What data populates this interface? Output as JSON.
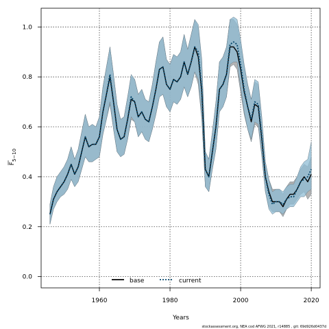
{
  "chart_data": {
    "type": "line",
    "xlabel": "Years",
    "ylabel": "F̅5–10",
    "ylabel_main": "F",
    "ylabel_sub": "5−10",
    "xlim": [
      1943.5,
      2022.5
    ],
    "ylim": [
      -0.045,
      1.075
    ],
    "grid": true,
    "legend_position": "bottom",
    "x_ticks": [
      1960,
      1980,
      2000,
      2020
    ],
    "y_ticks": [
      0.0,
      0.2,
      0.4,
      0.6,
      0.8,
      1.0
    ],
    "x_tick_labels": [
      "1960",
      "1980",
      "2000",
      "2020"
    ],
    "y_tick_labels": [
      "0.0",
      "0.2",
      "0.4",
      "0.6",
      "0.8",
      "1.0"
    ],
    "x": [
      1946,
      1947,
      1948,
      1949,
      1950,
      1951,
      1952,
      1953,
      1954,
      1955,
      1956,
      1957,
      1958,
      1959,
      1960,
      1961,
      1962,
      1963,
      1964,
      1965,
      1966,
      1967,
      1968,
      1969,
      1970,
      1971,
      1972,
      1973,
      1974,
      1975,
      1976,
      1977,
      1978,
      1979,
      1980,
      1981,
      1982,
      1983,
      1984,
      1985,
      1986,
      1987,
      1988,
      1989,
      1990,
      1991,
      1992,
      1993,
      1994,
      1995,
      1996,
      1997,
      1998,
      1999,
      2000,
      2001,
      2002,
      2003,
      2004,
      2005,
      2006,
      2007,
      2008,
      2009,
      2010,
      2011,
      2012,
      2013,
      2014,
      2015,
      2016,
      2017,
      2018,
      2019,
      2020
    ],
    "series": [
      {
        "name": "base",
        "color": "#000000",
        "style": "solid",
        "values": [
          0.25,
          0.31,
          0.34,
          0.36,
          0.38,
          0.41,
          0.45,
          0.41,
          0.44,
          0.5,
          0.56,
          0.52,
          0.53,
          0.53,
          0.56,
          0.66,
          0.73,
          0.8,
          0.7,
          0.59,
          0.55,
          0.56,
          0.63,
          0.71,
          0.7,
          0.64,
          0.66,
          0.63,
          0.62,
          0.68,
          0.75,
          0.83,
          0.84,
          0.77,
          0.75,
          0.79,
          0.78,
          0.8,
          0.86,
          0.81,
          0.86,
          0.92,
          0.88,
          0.74,
          0.43,
          0.4,
          0.5,
          0.6,
          0.75,
          0.77,
          0.81,
          0.92,
          0.92,
          0.9,
          0.83,
          0.74,
          0.68,
          0.62,
          0.69,
          0.68,
          0.55,
          0.4,
          0.34,
          0.3,
          0.3,
          0.3,
          0.28,
          0.31,
          0.33,
          0.33,
          0.35,
          0.38,
          0.4,
          0.38,
          0.41
        ]
      },
      {
        "name": "current",
        "color": "#0a4a6e",
        "style": "dotted",
        "values": [
          0.25,
          0.31,
          0.34,
          0.36,
          0.38,
          0.41,
          0.45,
          0.41,
          0.44,
          0.5,
          0.56,
          0.52,
          0.53,
          0.53,
          0.56,
          0.66,
          0.73,
          0.81,
          0.7,
          0.59,
          0.55,
          0.56,
          0.63,
          0.72,
          0.7,
          0.64,
          0.66,
          0.63,
          0.62,
          0.68,
          0.75,
          0.83,
          0.84,
          0.77,
          0.75,
          0.79,
          0.78,
          0.8,
          0.86,
          0.81,
          0.86,
          0.92,
          0.9,
          0.75,
          0.43,
          0.4,
          0.5,
          0.6,
          0.75,
          0.77,
          0.81,
          0.93,
          0.94,
          0.93,
          0.85,
          0.75,
          0.68,
          0.63,
          0.7,
          0.69,
          0.56,
          0.4,
          0.33,
          0.29,
          0.3,
          0.3,
          0.29,
          0.31,
          0.32,
          0.32,
          0.35,
          0.38,
          0.39,
          0.4,
          0.43
        ]
      }
    ],
    "bands": [
      {
        "series": "base",
        "fill": "#999999",
        "lower": [
          0.21,
          0.27,
          0.3,
          0.32,
          0.33,
          0.35,
          0.39,
          0.36,
          0.38,
          0.43,
          0.48,
          0.46,
          0.46,
          0.47,
          0.48,
          0.57,
          0.63,
          0.69,
          0.59,
          0.5,
          0.48,
          0.49,
          0.55,
          0.63,
          0.62,
          0.56,
          0.58,
          0.55,
          0.54,
          0.59,
          0.65,
          0.72,
          0.73,
          0.68,
          0.66,
          0.7,
          0.69,
          0.71,
          0.76,
          0.72,
          0.76,
          0.82,
          0.77,
          0.63,
          0.36,
          0.34,
          0.43,
          0.51,
          0.66,
          0.68,
          0.72,
          0.84,
          0.85,
          0.83,
          0.74,
          0.65,
          0.59,
          0.54,
          0.61,
          0.6,
          0.48,
          0.34,
          0.28,
          0.26,
          0.26,
          0.26,
          0.24,
          0.27,
          0.29,
          0.29,
          0.31,
          0.33,
          0.34,
          0.31,
          0.33
        ],
        "upper": [
          0.29,
          0.36,
          0.4,
          0.42,
          0.44,
          0.47,
          0.52,
          0.47,
          0.51,
          0.58,
          0.65,
          0.6,
          0.61,
          0.6,
          0.64,
          0.76,
          0.84,
          0.92,
          0.81,
          0.69,
          0.63,
          0.64,
          0.72,
          0.8,
          0.79,
          0.73,
          0.75,
          0.71,
          0.7,
          0.77,
          0.86,
          0.94,
          0.96,
          0.87,
          0.85,
          0.89,
          0.88,
          0.9,
          0.97,
          0.91,
          0.97,
          1.03,
          1.0,
          0.86,
          0.5,
          0.47,
          0.58,
          0.7,
          0.86,
          0.88,
          0.92,
          1.03,
          1.03,
          1.01,
          0.93,
          0.84,
          0.77,
          0.71,
          0.78,
          0.77,
          0.63,
          0.46,
          0.39,
          0.35,
          0.35,
          0.35,
          0.33,
          0.36,
          0.38,
          0.38,
          0.4,
          0.43,
          0.45,
          0.44,
          0.48
        ]
      },
      {
        "series": "current",
        "fill": "#8fbcd4",
        "lower": [
          0.21,
          0.27,
          0.3,
          0.32,
          0.33,
          0.35,
          0.39,
          0.36,
          0.38,
          0.43,
          0.48,
          0.46,
          0.46,
          0.47,
          0.48,
          0.57,
          0.63,
          0.7,
          0.59,
          0.5,
          0.48,
          0.49,
          0.55,
          0.64,
          0.62,
          0.56,
          0.58,
          0.55,
          0.54,
          0.59,
          0.65,
          0.72,
          0.73,
          0.68,
          0.66,
          0.7,
          0.69,
          0.71,
          0.76,
          0.72,
          0.76,
          0.82,
          0.79,
          0.64,
          0.36,
          0.34,
          0.43,
          0.51,
          0.66,
          0.68,
          0.72,
          0.85,
          0.86,
          0.86,
          0.76,
          0.66,
          0.59,
          0.55,
          0.62,
          0.61,
          0.49,
          0.34,
          0.27,
          0.25,
          0.26,
          0.26,
          0.25,
          0.27,
          0.28,
          0.28,
          0.3,
          0.32,
          0.32,
          0.34,
          0.35
        ],
        "upper": [
          0.29,
          0.36,
          0.4,
          0.42,
          0.44,
          0.47,
          0.52,
          0.47,
          0.51,
          0.58,
          0.65,
          0.6,
          0.61,
          0.6,
          0.64,
          0.76,
          0.84,
          0.92,
          0.81,
          0.69,
          0.63,
          0.64,
          0.72,
          0.81,
          0.79,
          0.73,
          0.75,
          0.71,
          0.7,
          0.77,
          0.86,
          0.94,
          0.96,
          0.87,
          0.85,
          0.89,
          0.88,
          0.9,
          0.97,
          0.91,
          0.97,
          1.03,
          1.01,
          0.87,
          0.5,
          0.47,
          0.58,
          0.7,
          0.86,
          0.88,
          0.92,
          1.03,
          1.04,
          1.03,
          0.95,
          0.85,
          0.77,
          0.71,
          0.79,
          0.78,
          0.64,
          0.46,
          0.39,
          0.34,
          0.35,
          0.35,
          0.34,
          0.36,
          0.37,
          0.37,
          0.4,
          0.44,
          0.46,
          0.47,
          0.54
        ]
      }
    ]
  },
  "legend": {
    "items": [
      {
        "label": "base",
        "color": "#000000",
        "style": "solid"
      },
      {
        "label": "current",
        "color": "#0a4a6e",
        "style": "dotted"
      }
    ]
  },
  "credit": "stockassessment.org,  NEA  cod  AFWG  2021,  r14885 ,  git:  69d926d0437d"
}
